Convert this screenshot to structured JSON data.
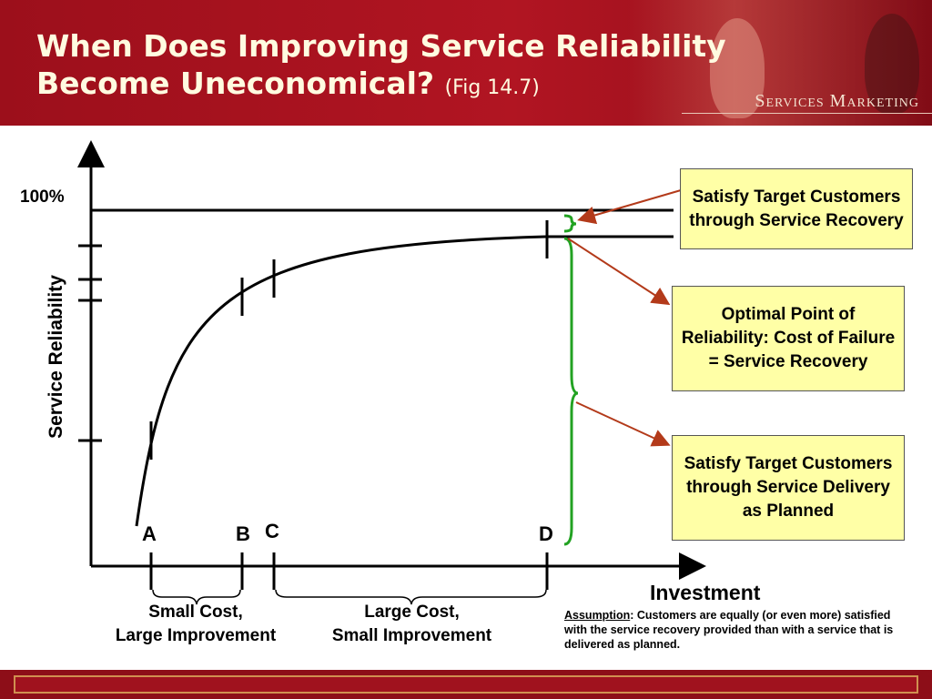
{
  "slide": {
    "title_line1": "When Does Improving Service Reliability",
    "title_line2": "Become Uneconomical?",
    "title_fig": "(Fig 14.7)",
    "brand": "Services Marketing"
  },
  "chart": {
    "y_axis_label": "Service Reliability",
    "x_axis_label": "Investment",
    "y_max_label": "100%",
    "points": [
      "A",
      "B",
      "C",
      "D"
    ],
    "brace_ab": "Small Cost,\nLarge Improvement",
    "brace_cd": "Large Cost,\nSmall Improvement"
  },
  "callouts": {
    "recovery": "Satisfy Target Customers through Service Recovery",
    "optimal": "Optimal Point of Reliability: Cost of Failure = Service Recovery",
    "delivery": "Satisfy Target Customers through Service Delivery as Planned"
  },
  "note": {
    "label": "Assumption",
    "text": ": Customers are equally (or even more) satisfied with the service recovery provided than with a service that is delivered as planned."
  },
  "colors": {
    "header": "#9c0f1b",
    "callout_fill": "#ffffa6",
    "arrow": "#b33a1a",
    "brace": "#22a222"
  }
}
